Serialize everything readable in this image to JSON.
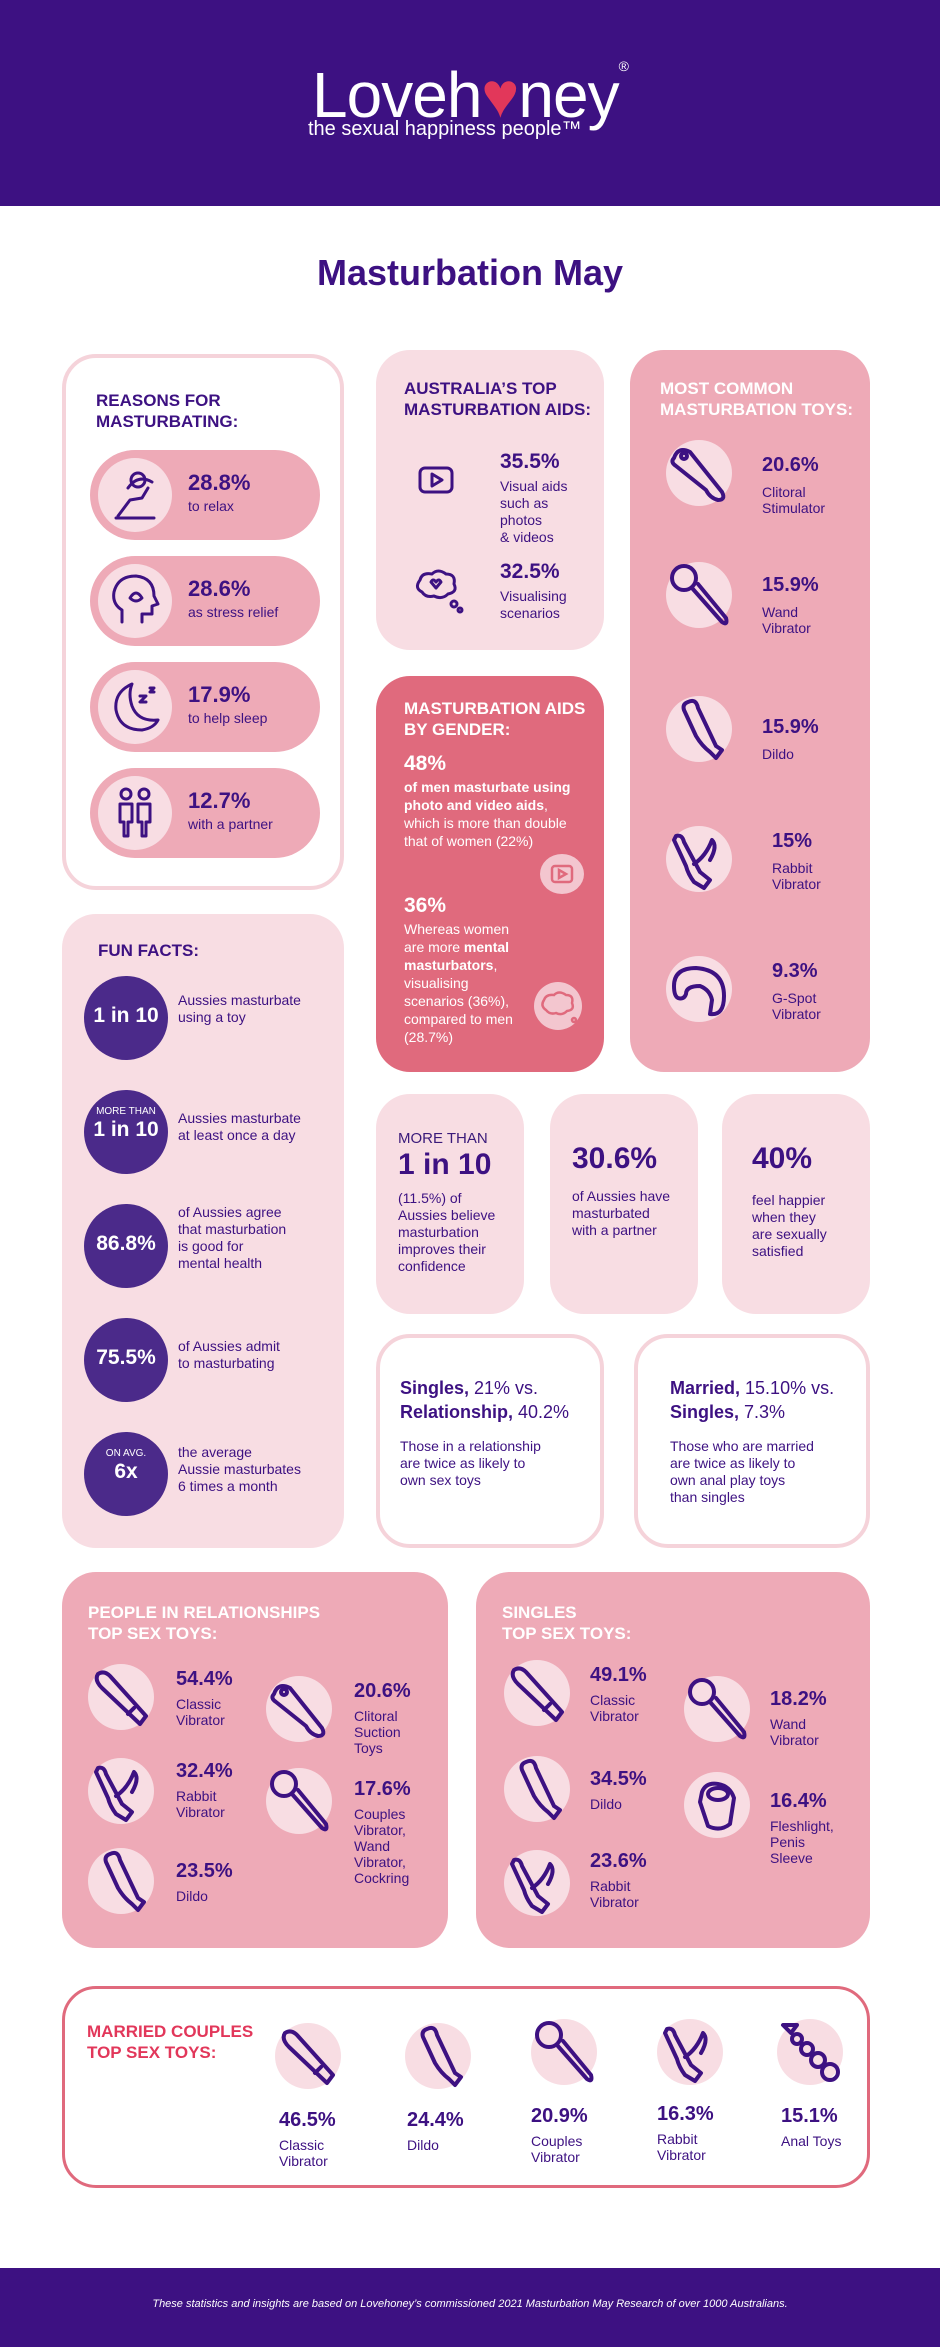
{
  "brand": {
    "logo_text_a": "Loveh",
    "logo_text_b": "ney",
    "registered": "®",
    "tagline": "the sexual happiness people™"
  },
  "page_title": "Masturbation May",
  "reasons": {
    "heading": "REASONS FOR\nMASTURBATING:",
    "items": [
      {
        "pct": "28.8%",
        "label": "to relax",
        "icon": "relax-icon"
      },
      {
        "pct": "28.6%",
        "label": "as stress relief",
        "icon": "head-lotus-icon"
      },
      {
        "pct": "17.9%",
        "label": "to help sleep",
        "icon": "moon-zzz-icon"
      },
      {
        "pct": "12.7%",
        "label": "with a partner",
        "icon": "couple-icon"
      }
    ]
  },
  "aids": {
    "heading": "AUSTRALIA’S TOP\nMASTURBATION AIDS:",
    "items": [
      {
        "pct": "35.5%",
        "label": "Visual aids\nsuch as\nphotos\n& videos",
        "icon": "video-play-icon"
      },
      {
        "pct": "32.5%",
        "label": "Visualising\nscenarios",
        "icon": "thought-heart-icon"
      }
    ]
  },
  "gender": {
    "heading": "MASTURBATION AIDS\nBY GENDER:",
    "men_pct": "48%",
    "men_bold": "of men masturbate using photo and video aids",
    "men_rest": ", which is more than double that of women (22%)",
    "women_pct": "36%",
    "women_a": "Whereas women are more ",
    "women_bold": "mental masturbators",
    "women_rest": ", visualising scenarios (36%), compared to men (28.7%)"
  },
  "common_toys": {
    "heading": "MOST COMMON\nMASTURBATION TOYS:",
    "items": [
      {
        "pct": "20.6%",
        "label": "Clitoral\nStimulator",
        "icon": "clitoral-stimulator-icon"
      },
      {
        "pct": "15.9%",
        "label": "Wand\nVibrator",
        "icon": "wand-vibrator-icon"
      },
      {
        "pct": "15.9%",
        "label": "Dildo",
        "icon": "dildo-icon"
      },
      {
        "pct": "15%",
        "label": "Rabbit\nVibrator",
        "icon": "rabbit-vibrator-icon"
      },
      {
        "pct": "9.3%",
        "label": "G-Spot\nVibrator",
        "icon": "g-spot-vibrator-icon"
      }
    ]
  },
  "fun_facts": {
    "heading": "FUN FACTS:",
    "items": [
      {
        "top": "",
        "big": "1 in 10",
        "text": "Aussies masturbate\nusing a toy"
      },
      {
        "top": "MORE THAN",
        "big": "1 in 10",
        "text": "Aussies masturbate\nat least once a day"
      },
      {
        "top": "",
        "big": "86.8%",
        "text": "of Aussies agree\nthat masturbation\nis good for\nmental health"
      },
      {
        "top": "",
        "big": "75.5%",
        "text": "of Aussies admit\nto masturbating"
      },
      {
        "top": "ON AVG.",
        "big": "6x",
        "text": "the average\nAussie masturbates\n6 times a month"
      }
    ]
  },
  "stats": {
    "confidence": {
      "top": "MORE THAN",
      "big": "1 in 10",
      "text": "(11.5%) of\nAussies believe\nmasturbation\nimproves their\nconfidence"
    },
    "partner": {
      "big": "30.6%",
      "text": "of Aussies have\nmasturbated\nwith a partner"
    },
    "happier": {
      "big": "40%",
      "text": "feel happier\nwhen they\nare sexually\nsatisfied"
    }
  },
  "compare": {
    "singles": {
      "line1_bold": "Singles,",
      "line1": " 21% vs.",
      "line2_bold": "Relationship,",
      "line2": " 40.2%",
      "text": "Those in a relationship\nare twice as likely to\nown sex toys"
    },
    "married": {
      "line1_bold": "Married,",
      "line1": " 15.10% vs.",
      "line2_bold": "Singles,",
      "line2": " 7.3%",
      "text": "Those who are married\nare  twice as likely to\nown anal play toys\nthan singles"
    }
  },
  "relationship_toys": {
    "heading": "PEOPLE IN RELATIONSHIPS\nTOP SEX TOYS:",
    "items": [
      {
        "pct": "54.4%",
        "label": "Classic\nVibrator",
        "icon": "classic-vibrator-icon"
      },
      {
        "pct": "20.6%",
        "label": "Clitoral\nSuction\nToys",
        "icon": "clitoral-suction-icon"
      },
      {
        "pct": "32.4%",
        "label": "Rabbit\nVibrator",
        "icon": "rabbit-vibrator-icon"
      },
      {
        "pct": "17.6%",
        "label": "Couples\nVibrator,\nWand\nVibrator,\nCockring",
        "icon": "wand-vibrator-icon"
      },
      {
        "pct": "23.5%",
        "label": "Dildo",
        "icon": "dildo-icon"
      }
    ]
  },
  "singles_toys": {
    "heading": "SINGLES\nTOP SEX TOYS:",
    "items": [
      {
        "pct": "49.1%",
        "label": "Classic\nVibrator",
        "icon": "classic-vibrator-icon"
      },
      {
        "pct": "18.2%",
        "label": "Wand\nVibrator",
        "icon": "wand-vibrator-icon"
      },
      {
        "pct": "34.5%",
        "label": "Dildo",
        "icon": "dildo-icon"
      },
      {
        "pct": "16.4%",
        "label": "Fleshlight,\nPenis\nSleeve",
        "icon": "fleshlight-icon"
      },
      {
        "pct": "23.6%",
        "label": "Rabbit\nVibrator",
        "icon": "rabbit-vibrator-icon"
      }
    ]
  },
  "married_toys": {
    "heading": "MARRIED COUPLES\nTOP SEX TOYS:",
    "items": [
      {
        "pct": "46.5%",
        "label": "Classic\nVibrator",
        "icon": "classic-vibrator-icon"
      },
      {
        "pct": "24.4%",
        "label": "Dildo",
        "icon": "dildo-icon"
      },
      {
        "pct": "20.9%",
        "label": "Couples\nVibrator",
        "icon": "couples-vibrator-icon"
      },
      {
        "pct": "16.3%",
        "label": "Rabbit\nVibrator",
        "icon": "rabbit-vibrator-icon"
      },
      {
        "pct": "15.1%",
        "label": "Anal Toys",
        "icon": "anal-beads-icon"
      }
    ]
  },
  "footer": "These statistics and insights are based on Lovehoney’s commissioned 2021 Masturbation May Research of over 1000 Australians.",
  "colors": {
    "purple": "#3d1182",
    "pink": "#eeaab7",
    "light_pink": "#f8dde3",
    "red": "#e06a7d",
    "accent": "#e2375a"
  }
}
